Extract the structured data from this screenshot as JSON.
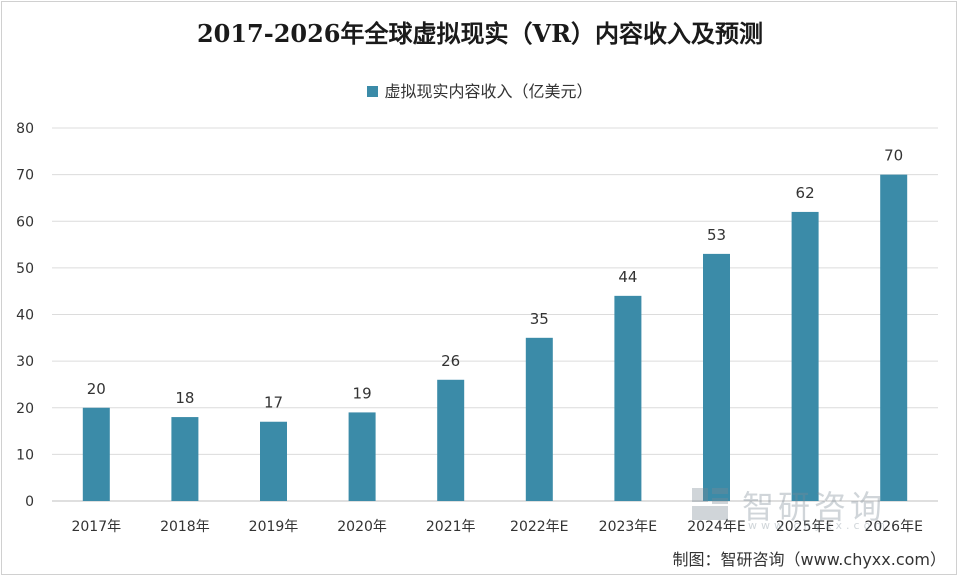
{
  "chart_data": {
    "type": "bar",
    "title": "2017-2026年全球虚拟现实（VR）内容收入及预测",
    "categories": [
      "2017年",
      "2018年",
      "2019年",
      "2020年",
      "2021年",
      "2022年E",
      "2023年E",
      "2024年E",
      "2025年E",
      "2026年E"
    ],
    "series": [
      {
        "name": "虚拟现实内容收入（亿美元）",
        "values": [
          20,
          18,
          17,
          19,
          26,
          35,
          44,
          53,
          62,
          70
        ]
      }
    ],
    "ylim": [
      0,
      80
    ],
    "yticks": [
      0,
      10,
      20,
      30,
      40,
      50,
      60,
      70,
      80
    ],
    "xlabel": "",
    "ylabel": "",
    "bar_color": "#3b8ba8",
    "grid": true,
    "legend_position": "top-center"
  },
  "watermark": {
    "brand": "智研咨询",
    "url": "www.chyxx.com"
  },
  "source": "制图：智研咨询（www.chyxx.com）"
}
